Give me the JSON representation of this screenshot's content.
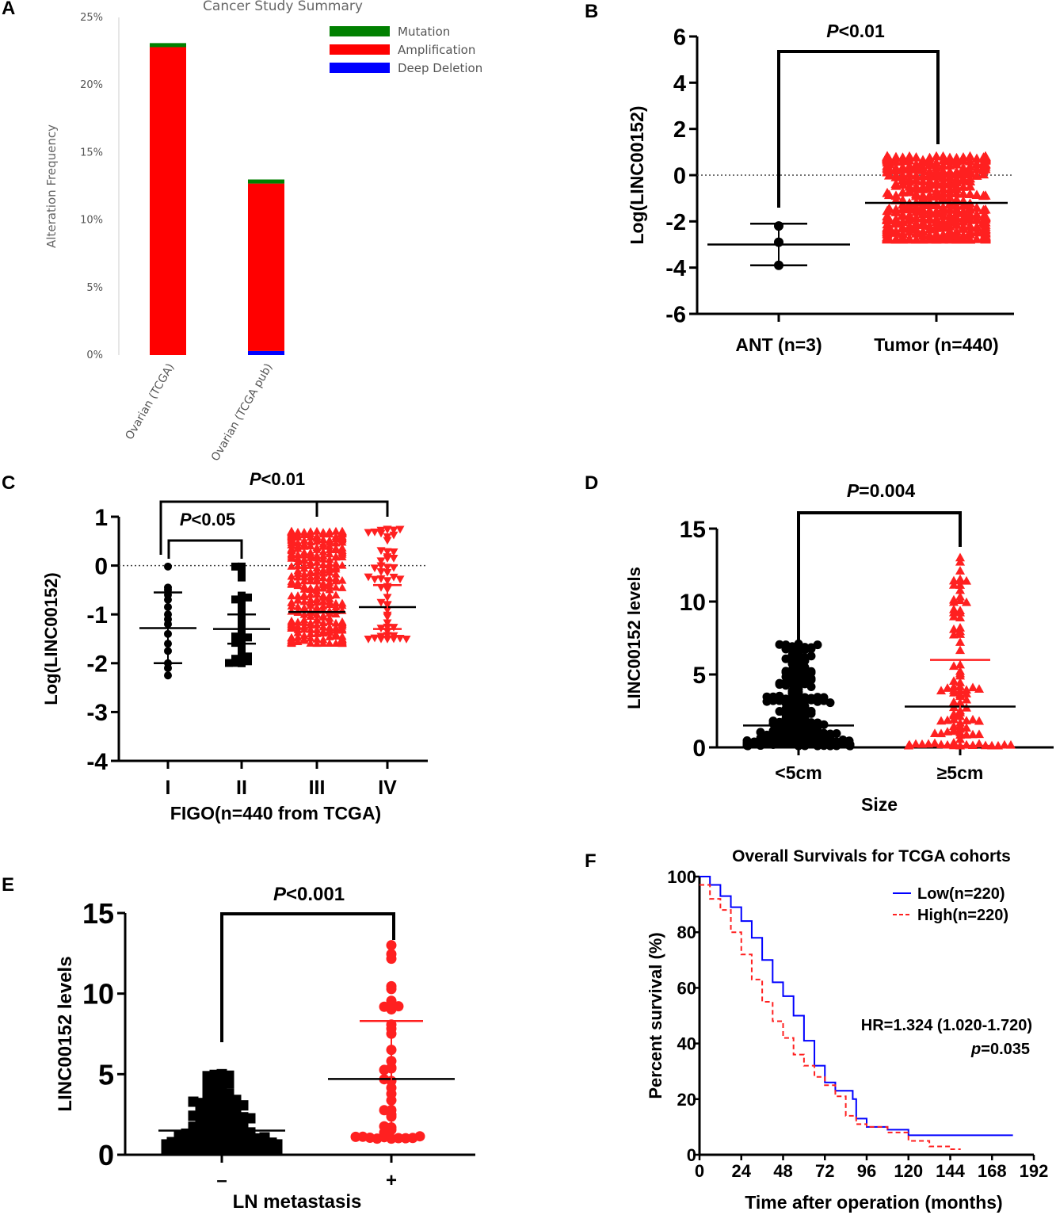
{
  "panels": {
    "A": {
      "letter": "A",
      "chart_data": {
        "type": "bar",
        "title": "Cancer Study Summary",
        "ylabel": "Alteration Frequency",
        "xlabel": "",
        "ylim": [
          0,
          25
        ],
        "yticks": [
          "0%",
          "5%",
          "10%",
          "15%",
          "20%",
          "25%"
        ],
        "yticks_values": [
          0,
          5,
          10,
          15,
          20,
          25
        ],
        "categories": [
          "Ovarian (TCGA)",
          "Ovarian (TCGA pub)"
        ],
        "series": [
          {
            "name": "Deep Deletion",
            "color": "#0000ff",
            "values": [
              0,
              0.3
            ]
          },
          {
            "name": "Amplification",
            "color": "#ff0000",
            "values": [
              22.8,
              12.4
            ]
          },
          {
            "name": "Mutation",
            "color": "#008000",
            "values": [
              0.3,
              0.3
            ]
          }
        ],
        "legend": [
          "Mutation",
          "Amplification",
          "Deep Deletion"
        ],
        "legend_colors": [
          "#008000",
          "#ff0000",
          "#0000ff"
        ]
      }
    },
    "B": {
      "letter": "B",
      "chart_data": {
        "type": "scatter",
        "ylabel": "Log(LINC00152)",
        "ylim": [
          -6,
          6
        ],
        "yticks": [
          "-6",
          "-4",
          "-2",
          "0",
          "2",
          "4",
          "6"
        ],
        "yticks_values": [
          -6,
          -4,
          -2,
          0,
          2,
          4,
          6
        ],
        "categories": [
          "ANT (n=3)",
          "Tumor (n=440)"
        ],
        "groups": [
          {
            "name": "ANT (n=3)",
            "color": "#000000",
            "marker": "circle",
            "mean": -3.0,
            "sd_low": -3.9,
            "sd_high": -2.1,
            "points": [
              -2.2,
              -2.9,
              -3.9
            ]
          },
          {
            "name": "Tumor (n=440)",
            "color": "#ff2020",
            "marker": "triangle",
            "mean": -1.2,
            "sd_low": -1.2,
            "sd_high": -1.2,
            "min": -2.8,
            "max": 0.8,
            "n": 440
          }
        ],
        "significance": [
          {
            "label_p": "P",
            "label_rest": "<0.01"
          }
        ]
      }
    },
    "C": {
      "letter": "C",
      "chart_data": {
        "type": "scatter",
        "ylabel": "Log(LINC00152)",
        "xlabel": "FIGO(n=440 from TCGA)",
        "ylim": [
          -4,
          1
        ],
        "yticks": [
          "-4",
          "-3",
          "-2",
          "-1",
          "0",
          "1"
        ],
        "yticks_values": [
          -4,
          -3,
          -2,
          -1,
          0,
          1
        ],
        "categories": [
          "I",
          "II",
          "III",
          "IV"
        ],
        "groups": [
          {
            "name": "I",
            "color": "#000000",
            "marker": "circle",
            "mean": -1.28,
            "sd_low": -2.0,
            "sd_high": -0.55,
            "points": [
              -0.02,
              -0.45,
              -0.5,
              -0.6,
              -0.7,
              -0.85,
              -1.0,
              -1.1,
              -1.2,
              -1.4,
              -1.6,
              -1.75,
              -2.0,
              -2.1,
              -2.25
            ]
          },
          {
            "name": "II",
            "color": "#000000",
            "marker": "square",
            "mean": -1.3,
            "sd_low": -1.6,
            "sd_high": -1.0,
            "min": -2.0,
            "max": -0.02,
            "n": 30
          },
          {
            "name": "III",
            "color": "#ff2020",
            "marker": "triangle",
            "mean": -0.95,
            "sd_low": -0.95,
            "sd_high": -0.95,
            "min": -1.6,
            "max": 0.7,
            "n": 340
          },
          {
            "name": "IV",
            "color": "#ff2020",
            "marker": "triangle-down",
            "mean": -0.85,
            "sd_low": -1.3,
            "sd_high": -0.4,
            "min": -1.5,
            "max": 0.75,
            "n": 55
          }
        ],
        "significance": [
          {
            "label_p": "P",
            "label_rest": "<0.01"
          },
          {
            "label_p": "P",
            "label_rest": "<0.05"
          }
        ]
      }
    },
    "D": {
      "letter": "D",
      "chart_data": {
        "type": "scatter",
        "ylabel": "LINC00152 levels",
        "xlabel": "Size",
        "ylim": [
          0,
          15
        ],
        "yticks": [
          "0",
          "5",
          "10",
          "15"
        ],
        "yticks_values": [
          0,
          5,
          10,
          15
        ],
        "categories": [
          "<5cm",
          "≥5cm"
        ],
        "groups": [
          {
            "name": "<5cm",
            "color": "#000000",
            "marker": "circle",
            "mean": 1.5,
            "sd_low": 0.2,
            "sd_high": 3.1,
            "min": 0.1,
            "max": 7.1,
            "n": 200
          },
          {
            "name": "≥5cm",
            "color": "#ff2020",
            "marker": "triangle",
            "mean": 2.8,
            "sd_low": 0.1,
            "sd_high": 6.0,
            "min": 0.1,
            "max": 13.0,
            "n": 100
          }
        ],
        "significance": [
          {
            "label_p": "P",
            "label_rest": "=0.004"
          }
        ]
      }
    },
    "E": {
      "letter": "E",
      "chart_data": {
        "type": "scatter",
        "ylabel": "LINC00152 levels",
        "xlabel": "LN metastasis",
        "ylim": [
          0,
          15
        ],
        "yticks": [
          "0",
          "5",
          "10",
          "15"
        ],
        "yticks_values": [
          0,
          5,
          10,
          15
        ],
        "categories": [
          "–",
          "+"
        ],
        "groups": [
          {
            "name": "–",
            "color": "#000000",
            "marker": "square",
            "mean": 1.5,
            "sd_low": 0.7,
            "sd_high": 2.5,
            "min": 0.3,
            "max": 5.0,
            "n": 150
          },
          {
            "name": "+",
            "color": "#ff2020",
            "marker": "circle",
            "mean": 4.7,
            "sd_low": 1.1,
            "sd_high": 8.3,
            "min": 1.0,
            "max": 13.0,
            "n": 40
          }
        ],
        "significance": [
          {
            "label_p": "P",
            "label_rest": "<0.001"
          }
        ]
      }
    },
    "F": {
      "letter": "F",
      "chart_data": {
        "type": "line",
        "title": "Overall Survivals for TCGA cohorts",
        "ylabel": "Percent survival (%)",
        "xlabel": "Time after operation (months)",
        "xlim": [
          0,
          192
        ],
        "ylim": [
          0,
          100
        ],
        "xticks": [
          "0",
          "24",
          "48",
          "72",
          "96",
          "120",
          "144",
          "168",
          "192"
        ],
        "xticks_values": [
          0,
          24,
          48,
          72,
          96,
          120,
          144,
          168,
          192
        ],
        "yticks": [
          "0",
          "20",
          "40",
          "60",
          "80",
          "100"
        ],
        "yticks_values": [
          0,
          20,
          40,
          60,
          80,
          100
        ],
        "series": [
          {
            "name": "Low(n=220)",
            "color": "#0000ff",
            "dash": false,
            "x": [
              0,
              6,
              12,
              18,
              24,
              30,
              36,
              42,
              48,
              54,
              60,
              66,
              72,
              78,
              84,
              88,
              90,
              96,
              108,
              120,
              144,
              168,
              180
            ],
            "y": [
              100,
              97,
              93,
              89,
              84,
              78,
              70,
              62,
              57,
              50,
              41,
              32,
              26,
              23,
              23,
              20,
              13,
              10,
              9,
              7,
              7,
              7,
              7
            ]
          },
          {
            "name": "High(n=220)",
            "color": "#ff2020",
            "dash": true,
            "x": [
              0,
              6,
              12,
              18,
              24,
              30,
              36,
              42,
              48,
              54,
              60,
              66,
              72,
              78,
              84,
              90,
              96,
              108,
              120,
              132,
              144,
              150
            ],
            "y": [
              97,
              92,
              88,
              80,
              72,
              63,
              55,
              48,
              42,
              36,
              32,
              28,
              25,
              21,
              14,
              11,
              10,
              8,
              5,
              3,
              2,
              2
            ]
          }
        ],
        "annotation_hr": "HR=1.324 (1.020-1.720)",
        "annotation_p_italic": "p",
        "annotation_p_rest": "=0.035"
      }
    }
  }
}
